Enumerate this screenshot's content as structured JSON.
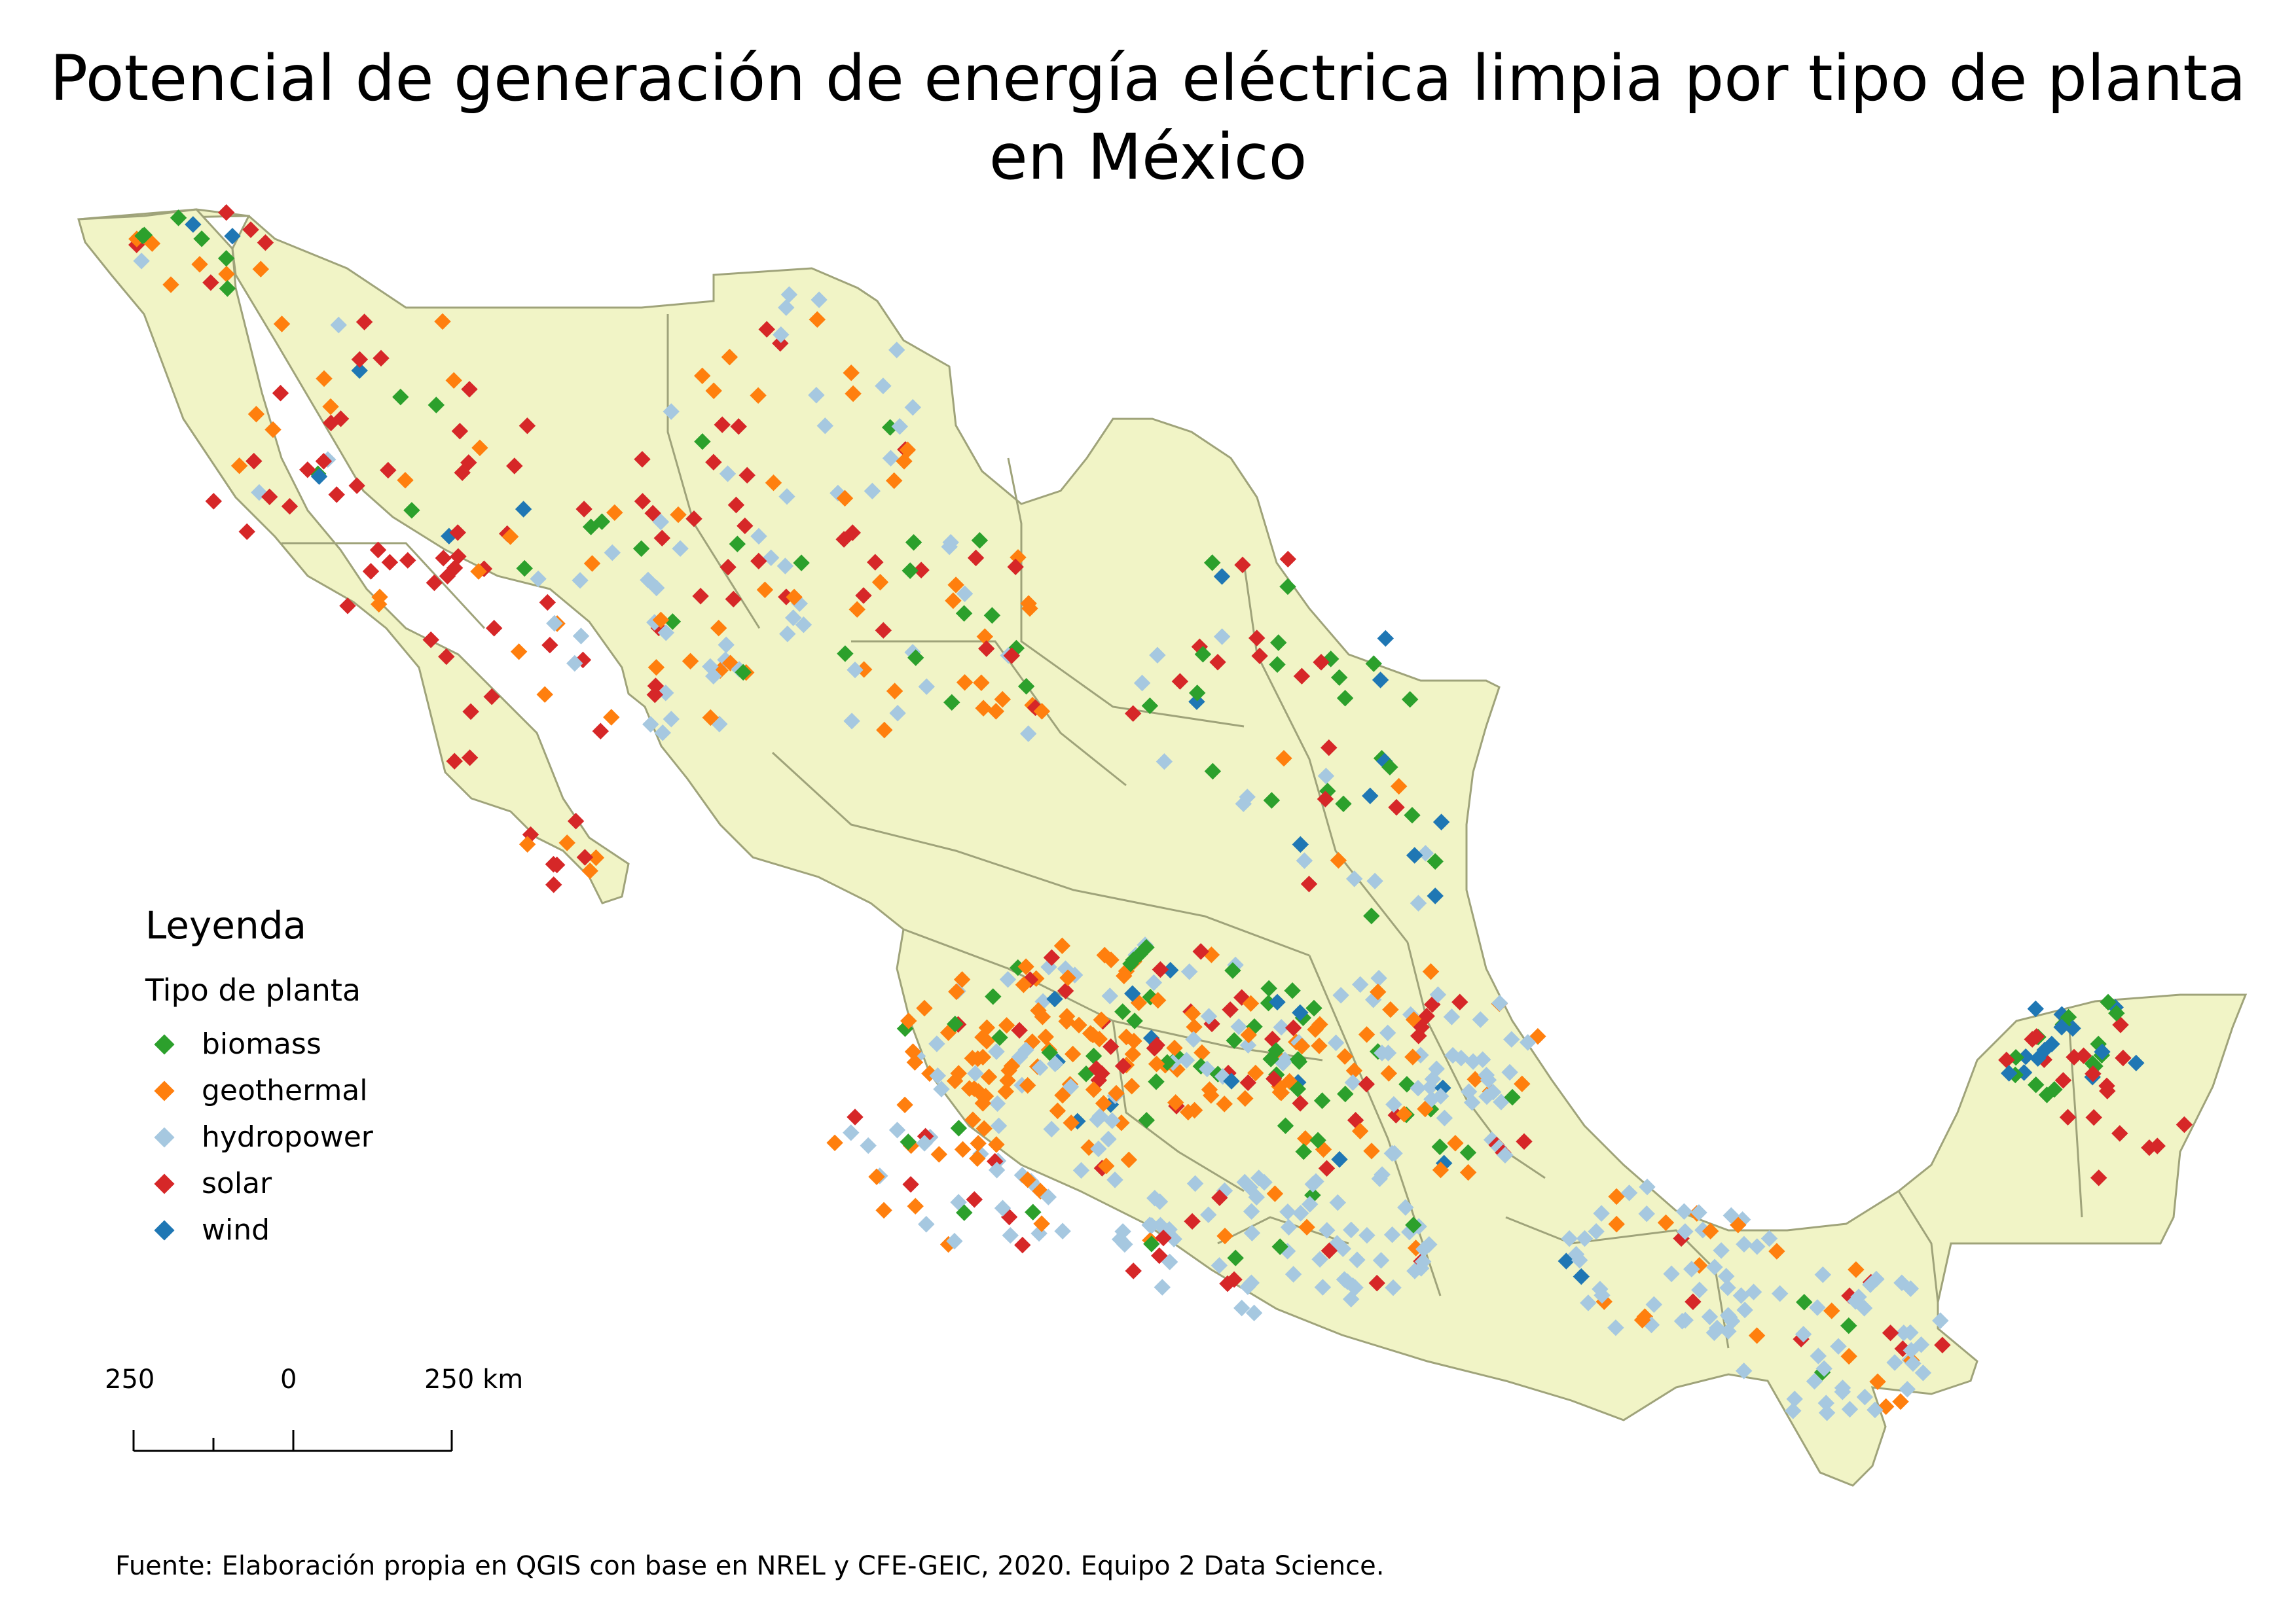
{
  "title": {
    "line1": "Potencial de generación de energía eléctrica limpia por tipo de planta",
    "line2": "en México"
  },
  "legend": {
    "heading": "Leyenda",
    "subtitle": "Tipo de planta",
    "items": [
      {
        "label": "biomass",
        "color": "#2ca02c"
      },
      {
        "label": "geothermal",
        "color": "#ff7f0e"
      },
      {
        "label": "hydropower",
        "color": "#a6c8e0"
      },
      {
        "label": "solar",
        "color": "#d62728"
      },
      {
        "label": "wind",
        "color": "#1f77b4"
      }
    ]
  },
  "scale_bar": {
    "left_label": "250",
    "center_label": "0",
    "right_label": "250 km"
  },
  "source": "Fuente: Elaboración propia en QGIS con base en NREL y CFE-GEIC, 2020. Equipo 2 Data Science.",
  "map": {
    "land_color": "#f1f4c6",
    "border_color": "#9fa37a"
  }
}
